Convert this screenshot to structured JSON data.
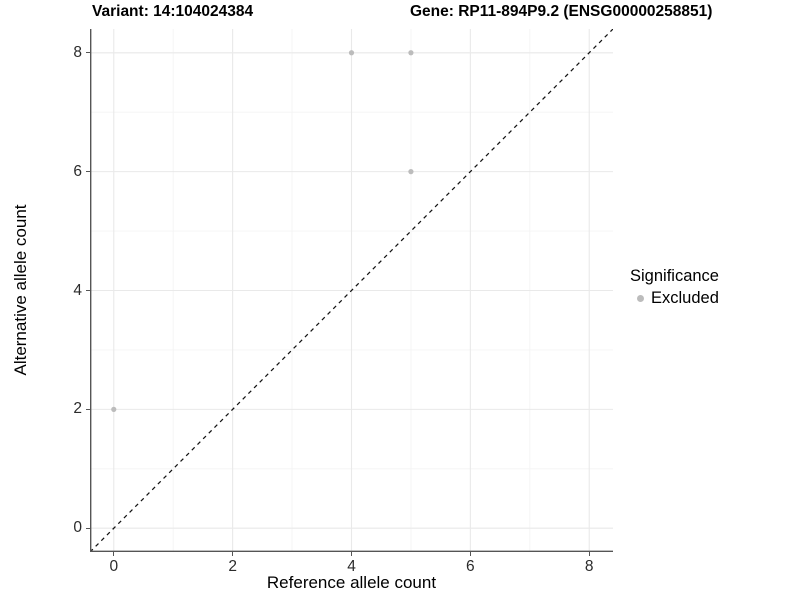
{
  "chart_data": {
    "type": "scatter",
    "title_left": "Variant: 14:104024384",
    "title_right": "Gene: RP11-894P9.2 (ENSG00000258851)",
    "xlabel": "Reference allele count",
    "ylabel": "Alternative allele count",
    "x_ticks": [
      0,
      2,
      4,
      6,
      8
    ],
    "y_ticks": [
      0,
      2,
      4,
      6,
      8
    ],
    "x_minor": [
      1,
      3,
      5,
      7
    ],
    "y_minor": [
      1,
      3,
      5,
      7
    ],
    "xlim": [
      -0.4,
      8.4
    ],
    "ylim": [
      -0.4,
      8.4
    ],
    "grid": "major+minor",
    "series": [
      {
        "name": "Excluded",
        "color": "#bcbcbc",
        "points": [
          [
            4,
            8
          ],
          [
            5,
            8
          ],
          [
            5,
            6
          ],
          [
            0,
            2
          ]
        ]
      }
    ],
    "reference_line": {
      "type": "identity",
      "style": "dashed",
      "color": "#141414"
    },
    "legend": {
      "position": "right",
      "title": "Significance",
      "items": [
        {
          "label": "Excluded",
          "color": "#bcbcbc"
        }
      ]
    },
    "colors": {
      "background": "#ffffff",
      "grid_major": "#e9e9e9",
      "grid_minor": "#f4f4f4",
      "axis_line": "#555555",
      "tick_mark": "#555555",
      "tick_label": "#2b2b2b",
      "point": "#bcbcbc"
    }
  }
}
